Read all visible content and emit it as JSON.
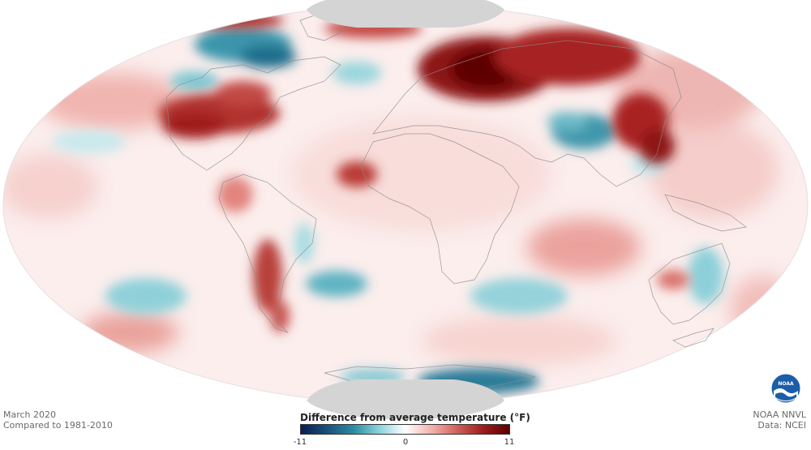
{
  "footer_left": {
    "line1": "March 2020",
    "line2": "Compared to 1981-2010"
  },
  "footer_right": {
    "line1": "NOAA NNVL",
    "line2": "Data: NCEI"
  },
  "legend": {
    "title": "Difference from average temperature (°F)",
    "min_label": "-11",
    "mid_label": "0",
    "max_label": "11",
    "min_value": -11,
    "max_value": 11,
    "colors": [
      "#0b1f4d",
      "#1a4f7a",
      "#2a8aa0",
      "#8ad3dc",
      "#ffffff",
      "#f3b3ae",
      "#d0605a",
      "#9e1b1b",
      "#5c0000"
    ]
  },
  "logo": {
    "text": "NOAA"
  },
  "map": {
    "projection": "mollweide",
    "ocean_neutral": "#fbefee",
    "no_data_color": "#d4d4d4",
    "border_color": "#8a8a8a"
  }
}
